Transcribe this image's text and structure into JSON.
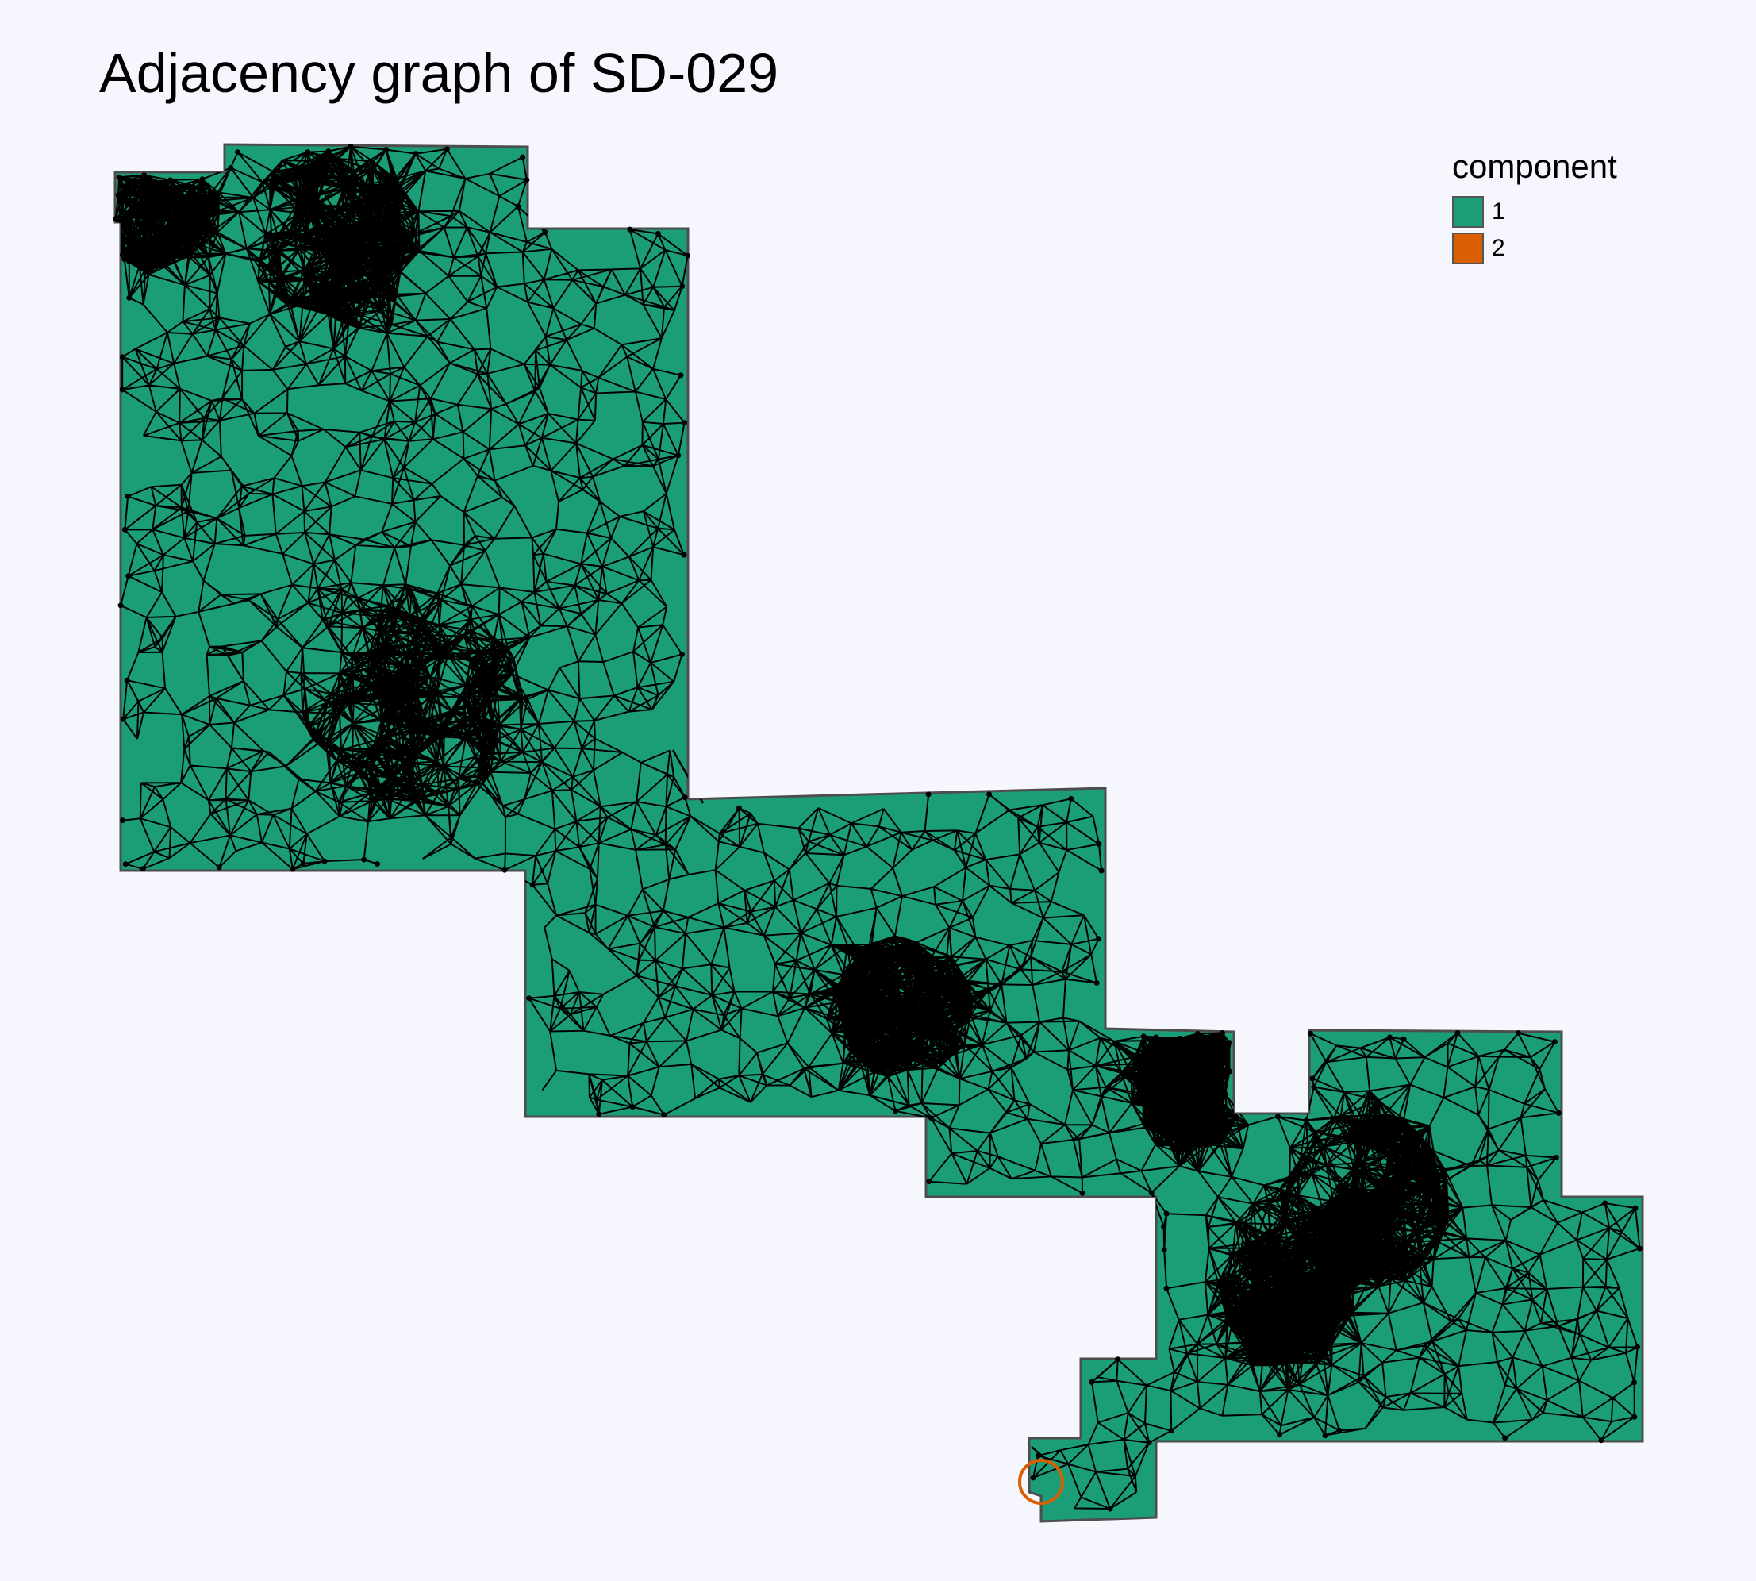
{
  "title": "Adjacency graph of SD-029",
  "legend": {
    "title": "component",
    "items": [
      {
        "label": "1",
        "color": "#1b9e77"
      },
      {
        "label": "2",
        "color": "#d95f02"
      }
    ]
  },
  "colors": {
    "background": "#f5f6fe",
    "region_fill": "#1b9e77",
    "region_border": "#4d4d4d",
    "edge": "#000000",
    "node": "#000000",
    "isolated_marker": "#d95f02"
  }
}
